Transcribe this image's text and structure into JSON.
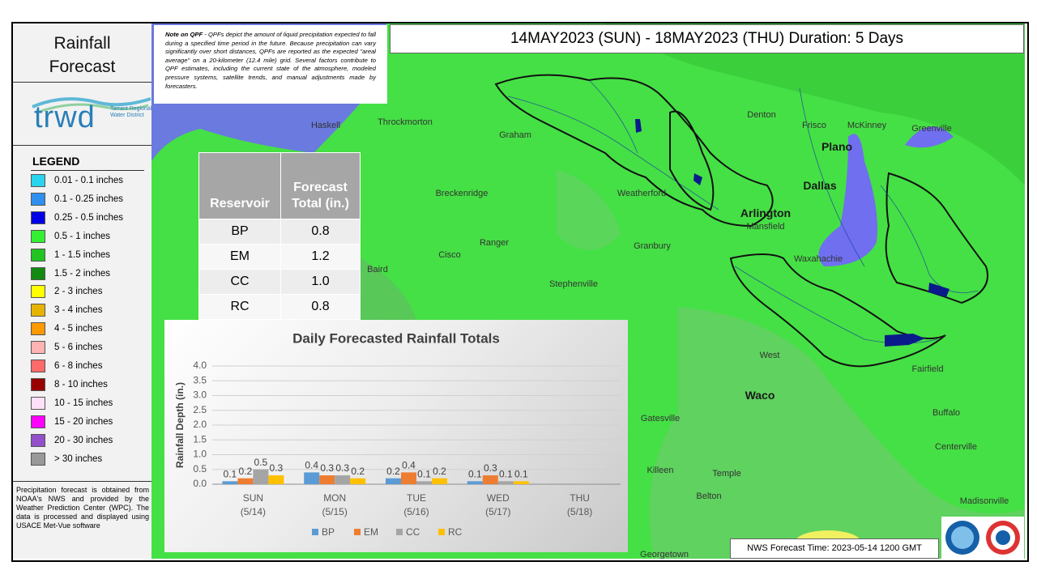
{
  "sidebar": {
    "title": "Rainfall Forecast",
    "logo": {
      "name": "trwd",
      "org": "Tarrant Regional Water District"
    },
    "legend": {
      "title": "LEGEND",
      "items": [
        {
          "label": "0.01 - 0.1 inches",
          "color": "#2ad3ee"
        },
        {
          "label": "0.1 - 0.25 inches",
          "color": "#2f8ff0"
        },
        {
          "label": "0.25 - 0.5 inches",
          "color": "#0000e6"
        },
        {
          "label": "0.5 - 1 inches",
          "color": "#33f033"
        },
        {
          "label": "1 - 1.5 inches",
          "color": "#22c422"
        },
        {
          "label": "1.5 - 2 inches",
          "color": "#128a12"
        },
        {
          "label": "2 - 3 inches",
          "color": "#ffff00"
        },
        {
          "label": "3 - 4 inches",
          "color": "#e6b400"
        },
        {
          "label": "4 - 5 inches",
          "color": "#ff9900"
        },
        {
          "label": "5 - 6 inches",
          "color": "#ffb3b3"
        },
        {
          "label": "6 - 8 inches",
          "color": "#ff6a6a"
        },
        {
          "label": "8 - 10 inches",
          "color": "#990000"
        },
        {
          "label": "10 - 15 inches",
          "color": "#ffe0fa"
        },
        {
          "label": "15 - 20 inches",
          "color": "#ff00ff"
        },
        {
          "label": "20 - 30 inches",
          "color": "#9350c8"
        },
        {
          "label": "> 30 inches",
          "color": "#999999"
        }
      ]
    },
    "source_note": "Precipitation forecast is obtained from NOAA's NWS and provided by the Weather Prediction Center (WPC). The data is processed and displayed using USACE Met-Vue software"
  },
  "header": {
    "title": "14MAY2023 (SUN) - 18MAY2023 (THU) Duration: 5 Days"
  },
  "qpf_note": {
    "lead": "Note on QPF",
    "text": "- QPFs depict the amount of liquid precipitation expected to fall during a specified time period in the future. Because precipitation can vary significantly over short distances, QPFs are reported as the expected \"areal average\" on a 20-kilometer (12.4 mile) grid. Several factors contribute to QPF estimates, including the current state of the atmosphere, modeled pressure systems, satellite trends, and manual adjustments made by forecasters."
  },
  "reservoir_table": {
    "columns": [
      "Reservoir",
      "Forecast Total (in.)"
    ],
    "rows": [
      [
        "BP",
        "0.8"
      ],
      [
        "EM",
        "1.2"
      ],
      [
        "CC",
        "1.0"
      ],
      [
        "RC",
        "0.8"
      ]
    ]
  },
  "chart_data": {
    "type": "bar",
    "title": "Daily Forecasted Rainfall Totals",
    "y_label": "Rainfall Depth (in.)",
    "categories": [
      "SUN\n(5/14)",
      "MON\n(5/15)",
      "TUE\n(5/16)",
      "WED\n(5/17)",
      "THU\n(5/18)"
    ],
    "series": [
      {
        "name": "BP",
        "color": "#5b9bd5",
        "values": [
          0.1,
          0.4,
          0.2,
          0.1,
          null
        ]
      },
      {
        "name": "EM",
        "color": "#ed7d31",
        "values": [
          0.2,
          0.3,
          0.4,
          0.3,
          null
        ]
      },
      {
        "name": "CC",
        "color": "#a5a5a5",
        "values": [
          0.5,
          0.3,
          0.1,
          0.1,
          null
        ]
      },
      {
        "name": "RC",
        "color": "#ffc000",
        "values": [
          0.3,
          0.2,
          0.2,
          0.1,
          null
        ]
      }
    ],
    "ylim": [
      0,
      4
    ],
    "yticks": [
      {
        "value": 0,
        "label": "0.0"
      },
      0.5,
      {
        "value": 1,
        "label": "1.0"
      },
      1.5,
      {
        "value": 2,
        "label": "2.0"
      },
      2.5,
      {
        "value": 3,
        "label": "3.0"
      },
      3.5,
      {
        "value": 4,
        "label": "4.0"
      }
    ],
    "grid": true,
    "legend": "bottom"
  },
  "forecast_time": "NWS Forecast Time: 2023-05-14 1200 GMT",
  "map": {
    "labels": [
      "Haskell",
      "Throckmorton",
      "Graham",
      "Denton",
      "Frisco",
      "McKinney",
      "Greenville",
      "Plano",
      "Breckenridge",
      "Weatherford",
      "Dallas",
      "Arlington",
      "Mansfield",
      "Ranger",
      "Granbury",
      "Cisco",
      "Baird",
      "Stephenville",
      "Waxahachie",
      "West",
      "Waco",
      "Fairfield",
      "Gatesville",
      "Buffalo",
      "Centerville",
      "Killeen",
      "Temple",
      "Belton",
      "Madisonville",
      "Georgetown"
    ]
  }
}
